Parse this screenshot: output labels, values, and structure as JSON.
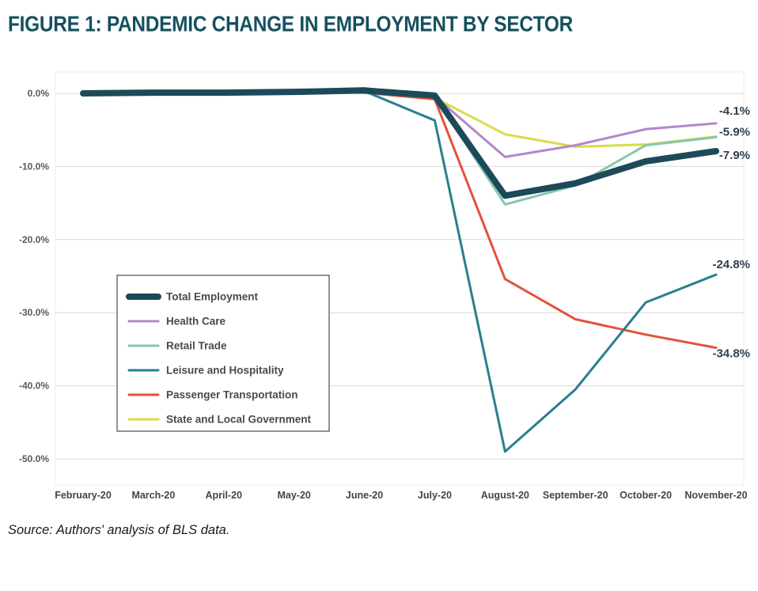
{
  "figure": {
    "title": "FIGURE 1: PANDEMIC CHANGE IN EMPLOYMENT BY SECTOR",
    "title_color": "#15505f",
    "source": "Source: Authors' analysis of BLS data."
  },
  "chart_data": {
    "type": "line",
    "x": [
      "February-20",
      "March-20",
      "April-20",
      "May-20",
      "June-20",
      "July-20",
      "August-20",
      "September-20",
      "October-20",
      "November-20"
    ],
    "ylim": [
      -52,
      3
    ],
    "grid": true,
    "legend": {
      "position": "inside-middle-left"
    },
    "yticks": [
      {
        "value": 0,
        "label": "0.0%"
      },
      {
        "value": -10,
        "label": "-10.0%"
      },
      {
        "value": -20,
        "label": "-20.0%"
      },
      {
        "value": -30,
        "label": "-30.0%"
      },
      {
        "value": -40,
        "label": "-40.0%"
      },
      {
        "value": -50,
        "label": "-50.0%"
      }
    ],
    "series": [
      {
        "id": "total-employment",
        "name": "Total Employment",
        "color": "#1c4a59",
        "width": 8,
        "z": 6,
        "end_label": "-7.9%",
        "label_dy": 10,
        "values": [
          0.0,
          0.1,
          0.1,
          0.2,
          0.4,
          -0.3,
          -14.0,
          -12.3,
          -9.3,
          -7.9
        ]
      },
      {
        "id": "health-care",
        "name": "Health Care",
        "color": "#b487cb",
        "width": 3,
        "z": 4,
        "end_label": "-4.1%",
        "label_dy": -11,
        "values": [
          0.0,
          0.1,
          0.1,
          0.2,
          0.4,
          -0.4,
          -8.7,
          -7.1,
          -4.9,
          -4.1
        ]
      },
      {
        "id": "retail-trade",
        "name": "Retail Trade",
        "color": "#86c7ac",
        "width": 3,
        "z": 3,
        "end_label": null,
        "label_dy": 0,
        "values": [
          0.0,
          0.1,
          0.2,
          0.3,
          0.7,
          -0.4,
          -15.2,
          -12.6,
          -7.1,
          -6.0
        ]
      },
      {
        "id": "leisure-hospitality",
        "name": "Leisure and Hospitality",
        "color": "#2a7e8e",
        "width": 3,
        "z": 5,
        "end_label": "-24.8%",
        "label_dy": -8,
        "values": [
          0.0,
          0.0,
          0.1,
          0.2,
          0.3,
          -3.7,
          -49.0,
          -40.5,
          -28.6,
          -24.8
        ]
      },
      {
        "id": "passenger-transportation",
        "name": "Passenger Transportation",
        "color": "#e2523c",
        "width": 3,
        "z": 2,
        "end_label": "-34.8%",
        "label_dy": 12,
        "values": [
          -0.1,
          0.0,
          0.0,
          0.1,
          0.1,
          -0.8,
          -25.4,
          -30.9,
          -33.0,
          -34.8
        ]
      },
      {
        "id": "state-local-government",
        "name": "State and Local Government",
        "color": "#d8dc49",
        "width": 3,
        "z": 1,
        "end_label": "-5.9%",
        "label_dy": -1,
        "values": [
          -0.1,
          0.0,
          0.0,
          0.1,
          0.3,
          -0.6,
          -5.6,
          -7.3,
          -7.0,
          -5.9
        ]
      }
    ]
  }
}
